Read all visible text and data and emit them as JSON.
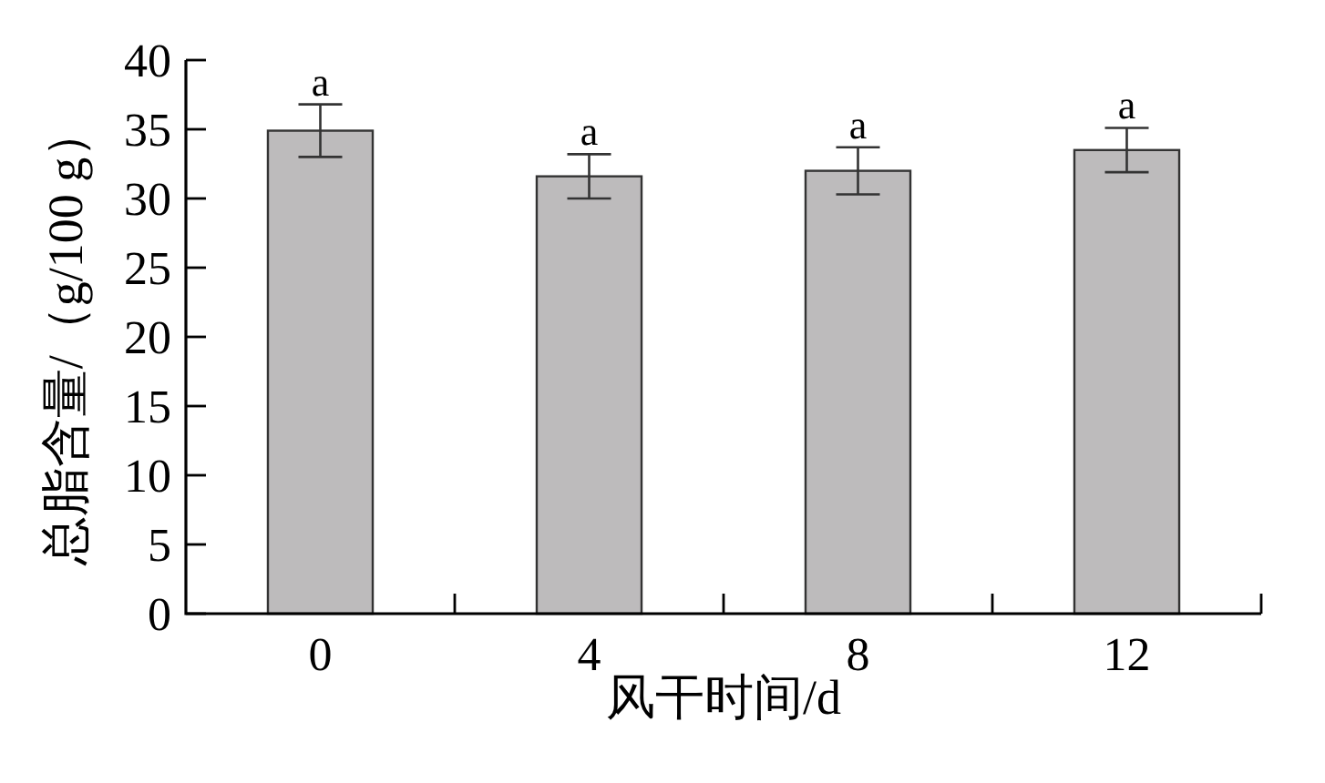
{
  "chart_data": {
    "type": "bar",
    "xlabel": "风干时间/d",
    "ylabel": "总脂含量/（g/100 g）",
    "categories": [
      "0",
      "4",
      "8",
      "12"
    ],
    "values": [
      34.9,
      31.6,
      32.0,
      33.5
    ],
    "errors": [
      1.9,
      1.6,
      1.7,
      1.6
    ],
    "color": "#bdbbbc",
    "ylim": [
      0,
      40
    ],
    "yticks": [
      0,
      5,
      10,
      15,
      20,
      25,
      30,
      35,
      40
    ],
    "annotations": [
      {
        "text": "a",
        "x": "0",
        "y": 36.8
      },
      {
        "text": "a",
        "x": "4",
        "y": 33.2
      },
      {
        "text": "a",
        "x": "8",
        "y": 33.7
      },
      {
        "text": "a",
        "x": "12",
        "y": 35.1
      }
    ]
  }
}
